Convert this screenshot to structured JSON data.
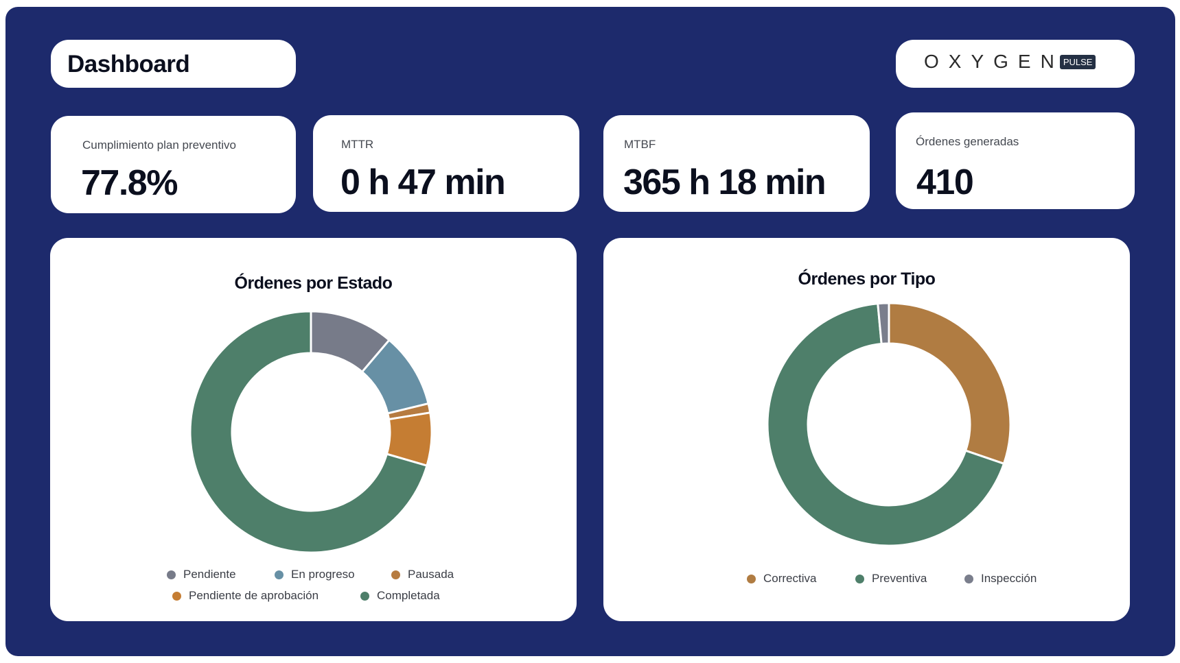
{
  "header": {
    "title": "Dashboard",
    "logo_text": "OXYGEN",
    "logo_badge": "PULSE"
  },
  "kpis": [
    {
      "label": "Cumplimiento plan preventivo",
      "value": "77.8%"
    },
    {
      "label": "MTTR",
      "value": "0 h 47 min"
    },
    {
      "label": "MTBF",
      "value": "365 h 18 min"
    },
    {
      "label": "Órdenes generadas",
      "value": "410"
    }
  ],
  "colors": {
    "background": "#1d2a6c",
    "card": "#ffffff"
  },
  "chart_data": [
    {
      "type": "pie",
      "donut": true,
      "title": "Órdenes por Estado",
      "legend_position": "bottom",
      "slices": [
        {
          "label": "Pendiente",
          "value": 46,
          "color": "#777b89"
        },
        {
          "label": "En progreso",
          "value": 41,
          "color": "#6790a5"
        },
        {
          "label": "Pausada",
          "value": 5,
          "color": "#b67b40"
        },
        {
          "label": "Pendiente de aprobación",
          "value": 29,
          "color": "#c57d33"
        },
        {
          "label": "Completada",
          "value": 289,
          "color": "#4e7f6a"
        }
      ]
    },
    {
      "type": "pie",
      "donut": true,
      "title": "Órdenes por Tipo",
      "legend_position": "bottom",
      "slices": [
        {
          "label": "Correctiva",
          "value": 124,
          "color": "#b07c42"
        },
        {
          "label": "Preventiva",
          "value": 280,
          "color": "#4e7f6a"
        },
        {
          "label": "Inspección",
          "value": 6,
          "color": "#7a7e8c"
        }
      ]
    }
  ]
}
